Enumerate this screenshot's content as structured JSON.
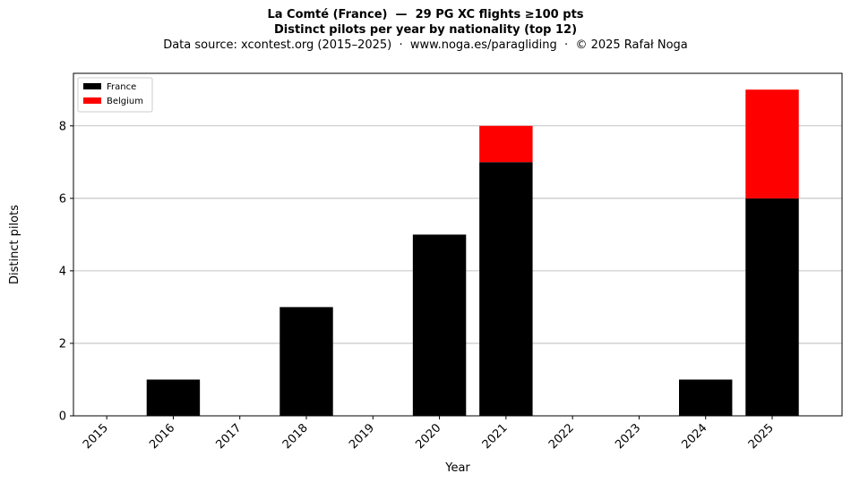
{
  "header": {
    "title": "La Comté (France)  —  29 PG XC flights ≥100 pts",
    "subtitle": "Distinct pilots per year by nationality (top 12)",
    "source": "Data source: xcontest.org (2015–2025)  ·  www.noga.es/paragliding  ·  © 2025 Rafał Noga"
  },
  "chart_data": {
    "type": "bar",
    "stacked": true,
    "title": "La Comté (France)  —  29 PG XC flights ≥100 pts",
    "subtitle": "Distinct pilots per year by nationality (top 12)",
    "xlabel": "Year",
    "ylabel": "Distinct pilots",
    "categories": [
      "2015",
      "2016",
      "2017",
      "2018",
      "2019",
      "2020",
      "2021",
      "2022",
      "2023",
      "2024",
      "2025"
    ],
    "series": [
      {
        "name": "France",
        "color": "#000000",
        "values": [
          0,
          1,
          0,
          3,
          0,
          5,
          7,
          0,
          0,
          1,
          6
        ]
      },
      {
        "name": "Belgium",
        "color": "#ff0000",
        "values": [
          0,
          0,
          0,
          0,
          0,
          0,
          1,
          0,
          0,
          0,
          3
        ]
      }
    ],
    "ylim": [
      0,
      9.45
    ],
    "yticks": [
      0,
      2,
      4,
      6,
      8
    ],
    "grid": "y",
    "legend_position": "top-left"
  }
}
